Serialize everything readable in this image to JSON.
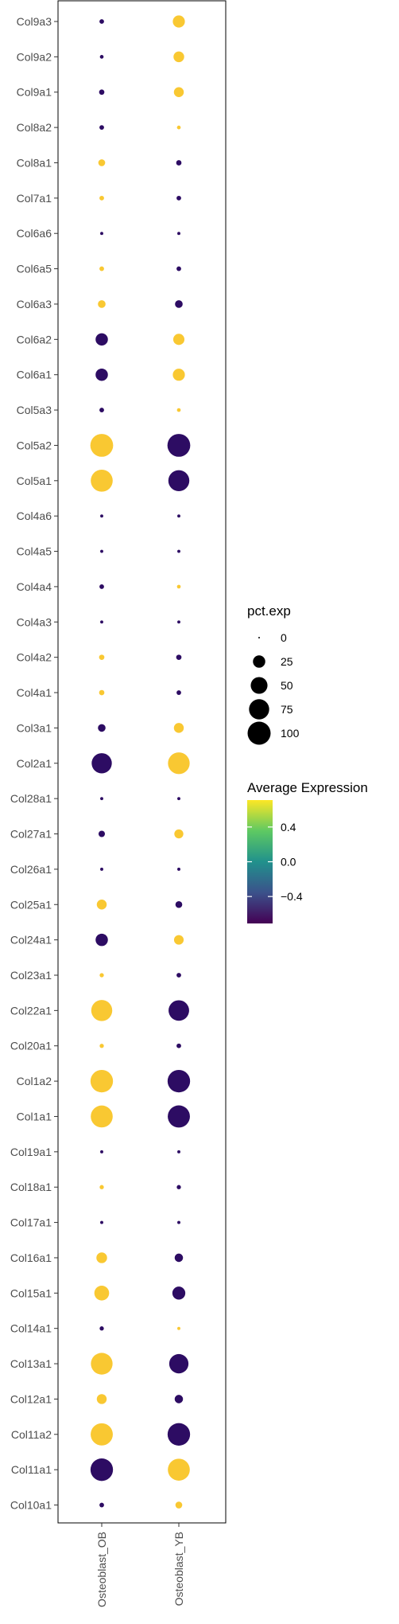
{
  "chart_data": {
    "type": "scatter",
    "subtype": "dotplot",
    "title": "",
    "xlabel": "",
    "ylabel": "",
    "x_categories": [
      "Osteoblast_OB",
      "Osteoblast_YB"
    ],
    "y_categories": [
      "Col9a3",
      "Col9a2",
      "Col9a1",
      "Col8a2",
      "Col8a1",
      "Col7a1",
      "Col6a6",
      "Col6a5",
      "Col6a3",
      "Col6a2",
      "Col6a1",
      "Col5a3",
      "Col5a2",
      "Col5a1",
      "Col4a6",
      "Col4a5",
      "Col4a4",
      "Col4a3",
      "Col4a2",
      "Col4a1",
      "Col3a1",
      "Col2a1",
      "Col28a1",
      "Col27a1",
      "Col26a1",
      "Col25a1",
      "Col24a1",
      "Col23a1",
      "Col22a1",
      "Col20a1",
      "Col1a2",
      "Col1a1",
      "Col19a1",
      "Col18a1",
      "Col17a1",
      "Col16a1",
      "Col15a1",
      "Col14a1",
      "Col13a1",
      "Col12a1",
      "Col11a2",
      "Col11a1",
      "Col10a1"
    ],
    "points": [
      {
        "gene": "Col9a3",
        "cluster": "Osteoblast_OB",
        "pct_exp": 2,
        "avg_exp": -0.71
      },
      {
        "gene": "Col9a3",
        "cluster": "Osteoblast_YB",
        "pct_exp": 24,
        "avg_exp": 0.71
      },
      {
        "gene": "Col9a2",
        "cluster": "Osteoblast_OB",
        "pct_exp": 1,
        "avg_exp": -0.71
      },
      {
        "gene": "Col9a2",
        "cluster": "Osteoblast_YB",
        "pct_exp": 18,
        "avg_exp": 0.71
      },
      {
        "gene": "Col9a1",
        "cluster": "Osteoblast_OB",
        "pct_exp": 3,
        "avg_exp": -0.71
      },
      {
        "gene": "Col9a1",
        "cluster": "Osteoblast_YB",
        "pct_exp": 15,
        "avg_exp": 0.71
      },
      {
        "gene": "Col8a2",
        "cluster": "Osteoblast_OB",
        "pct_exp": 2,
        "avg_exp": -0.71
      },
      {
        "gene": "Col8a2",
        "cluster": "Osteoblast_YB",
        "pct_exp": 1,
        "avg_exp": 0.71
      },
      {
        "gene": "Col8a1",
        "cluster": "Osteoblast_OB",
        "pct_exp": 6,
        "avg_exp": 0.71
      },
      {
        "gene": "Col8a1",
        "cluster": "Osteoblast_YB",
        "pct_exp": 3,
        "avg_exp": -0.71
      },
      {
        "gene": "Col7a1",
        "cluster": "Osteoblast_OB",
        "pct_exp": 2,
        "avg_exp": 0.71
      },
      {
        "gene": "Col7a1",
        "cluster": "Osteoblast_YB",
        "pct_exp": 2,
        "avg_exp": -0.71
      },
      {
        "gene": "Col6a6",
        "cluster": "Osteoblast_OB",
        "pct_exp": 0.5,
        "avg_exp": -0.71
      },
      {
        "gene": "Col6a6",
        "cluster": "Osteoblast_YB",
        "pct_exp": 0.5,
        "avg_exp": -0.71
      },
      {
        "gene": "Col6a5",
        "cluster": "Osteoblast_OB",
        "pct_exp": 2,
        "avg_exp": 0.71
      },
      {
        "gene": "Col6a5",
        "cluster": "Osteoblast_YB",
        "pct_exp": 2,
        "avg_exp": -0.71
      },
      {
        "gene": "Col6a3",
        "cluster": "Osteoblast_OB",
        "pct_exp": 8,
        "avg_exp": 0.71
      },
      {
        "gene": "Col6a3",
        "cluster": "Osteoblast_YB",
        "pct_exp": 8,
        "avg_exp": -0.71
      },
      {
        "gene": "Col6a2",
        "cluster": "Osteoblast_OB",
        "pct_exp": 25,
        "avg_exp": -0.71
      },
      {
        "gene": "Col6a2",
        "cluster": "Osteoblast_YB",
        "pct_exp": 20,
        "avg_exp": 0.71
      },
      {
        "gene": "Col6a1",
        "cluster": "Osteoblast_OB",
        "pct_exp": 25,
        "avg_exp": -0.71
      },
      {
        "gene": "Col6a1",
        "cluster": "Osteoblast_YB",
        "pct_exp": 24,
        "avg_exp": 0.71
      },
      {
        "gene": "Col5a3",
        "cluster": "Osteoblast_OB",
        "pct_exp": 2,
        "avg_exp": -0.71
      },
      {
        "gene": "Col5a3",
        "cluster": "Osteoblast_YB",
        "pct_exp": 1,
        "avg_exp": 0.71
      },
      {
        "gene": "Col5a2",
        "cluster": "Osteoblast_OB",
        "pct_exp": 98,
        "avg_exp": 0.71
      },
      {
        "gene": "Col5a2",
        "cluster": "Osteoblast_YB",
        "pct_exp": 98,
        "avg_exp": -0.71
      },
      {
        "gene": "Col5a1",
        "cluster": "Osteoblast_OB",
        "pct_exp": 90,
        "avg_exp": 0.71
      },
      {
        "gene": "Col5a1",
        "cluster": "Osteoblast_YB",
        "pct_exp": 82,
        "avg_exp": -0.71
      },
      {
        "gene": "Col4a6",
        "cluster": "Osteoblast_OB",
        "pct_exp": 0.5,
        "avg_exp": -0.71
      },
      {
        "gene": "Col4a6",
        "cluster": "Osteoblast_YB",
        "pct_exp": 0.5,
        "avg_exp": -0.71
      },
      {
        "gene": "Col4a5",
        "cluster": "Osteoblast_OB",
        "pct_exp": 0.5,
        "avg_exp": -0.71
      },
      {
        "gene": "Col4a5",
        "cluster": "Osteoblast_YB",
        "pct_exp": 0.5,
        "avg_exp": -0.71
      },
      {
        "gene": "Col4a4",
        "cluster": "Osteoblast_OB",
        "pct_exp": 2,
        "avg_exp": -0.71
      },
      {
        "gene": "Col4a4",
        "cluster": "Osteoblast_YB",
        "pct_exp": 1,
        "avg_exp": 0.71
      },
      {
        "gene": "Col4a3",
        "cluster": "Osteoblast_OB",
        "pct_exp": 0.5,
        "avg_exp": -0.71
      },
      {
        "gene": "Col4a3",
        "cluster": "Osteoblast_YB",
        "pct_exp": 0.5,
        "avg_exp": -0.71
      },
      {
        "gene": "Col4a2",
        "cluster": "Osteoblast_OB",
        "pct_exp": 3,
        "avg_exp": 0.71
      },
      {
        "gene": "Col4a2",
        "cluster": "Osteoblast_YB",
        "pct_exp": 3,
        "avg_exp": -0.71
      },
      {
        "gene": "Col4a1",
        "cluster": "Osteoblast_OB",
        "pct_exp": 3,
        "avg_exp": 0.71
      },
      {
        "gene": "Col4a1",
        "cluster": "Osteoblast_YB",
        "pct_exp": 2,
        "avg_exp": -0.71
      },
      {
        "gene": "Col3a1",
        "cluster": "Osteoblast_OB",
        "pct_exp": 8,
        "avg_exp": -0.71
      },
      {
        "gene": "Col3a1",
        "cluster": "Osteoblast_YB",
        "pct_exp": 15,
        "avg_exp": 0.71
      },
      {
        "gene": "Col2a1",
        "cluster": "Osteoblast_OB",
        "pct_exp": 75,
        "avg_exp": -0.71
      },
      {
        "gene": "Col2a1",
        "cluster": "Osteoblast_YB",
        "pct_exp": 88,
        "avg_exp": 0.71
      },
      {
        "gene": "Col28a1",
        "cluster": "Osteoblast_OB",
        "pct_exp": 0.5,
        "avg_exp": -0.71
      },
      {
        "gene": "Col28a1",
        "cluster": "Osteoblast_YB",
        "pct_exp": 0.5,
        "avg_exp": -0.71
      },
      {
        "gene": "Col27a1",
        "cluster": "Osteoblast_OB",
        "pct_exp": 5,
        "avg_exp": -0.71
      },
      {
        "gene": "Col27a1",
        "cluster": "Osteoblast_YB",
        "pct_exp": 12,
        "avg_exp": 0.71
      },
      {
        "gene": "Col26a1",
        "cluster": "Osteoblast_OB",
        "pct_exp": 0.5,
        "avg_exp": -0.71
      },
      {
        "gene": "Col26a1",
        "cluster": "Osteoblast_YB",
        "pct_exp": 0.5,
        "avg_exp": -0.71
      },
      {
        "gene": "Col25a1",
        "cluster": "Osteoblast_OB",
        "pct_exp": 15,
        "avg_exp": 0.71
      },
      {
        "gene": "Col25a1",
        "cluster": "Osteoblast_YB",
        "pct_exp": 6,
        "avg_exp": -0.71
      },
      {
        "gene": "Col24a1",
        "cluster": "Osteoblast_OB",
        "pct_exp": 25,
        "avg_exp": -0.71
      },
      {
        "gene": "Col24a1",
        "cluster": "Osteoblast_YB",
        "pct_exp": 14,
        "avg_exp": 0.71
      },
      {
        "gene": "Col23a1",
        "cluster": "Osteoblast_OB",
        "pct_exp": 1.5,
        "avg_exp": 0.71
      },
      {
        "gene": "Col23a1",
        "cluster": "Osteoblast_YB",
        "pct_exp": 2,
        "avg_exp": -0.71
      },
      {
        "gene": "Col22a1",
        "cluster": "Osteoblast_OB",
        "pct_exp": 82,
        "avg_exp": 0.71
      },
      {
        "gene": "Col22a1",
        "cluster": "Osteoblast_YB",
        "pct_exp": 78,
        "avg_exp": -0.71
      },
      {
        "gene": "Col20a1",
        "cluster": "Osteoblast_OB",
        "pct_exp": 1.5,
        "avg_exp": 0.71
      },
      {
        "gene": "Col20a1",
        "cluster": "Osteoblast_YB",
        "pct_exp": 2,
        "avg_exp": -0.71
      },
      {
        "gene": "Col1a2",
        "cluster": "Osteoblast_OB",
        "pct_exp": 95,
        "avg_exp": 0.71
      },
      {
        "gene": "Col1a2",
        "cluster": "Osteoblast_YB",
        "pct_exp": 95,
        "avg_exp": -0.71
      },
      {
        "gene": "Col1a1",
        "cluster": "Osteoblast_OB",
        "pct_exp": 90,
        "avg_exp": 0.71
      },
      {
        "gene": "Col1a1",
        "cluster": "Osteoblast_YB",
        "pct_exp": 92,
        "avg_exp": -0.71
      },
      {
        "gene": "Col19a1",
        "cluster": "Osteoblast_OB",
        "pct_exp": 0.5,
        "avg_exp": -0.71
      },
      {
        "gene": "Col19a1",
        "cluster": "Osteoblast_YB",
        "pct_exp": 0.5,
        "avg_exp": -0.71
      },
      {
        "gene": "Col18a1",
        "cluster": "Osteoblast_OB",
        "pct_exp": 1.5,
        "avg_exp": 0.71
      },
      {
        "gene": "Col18a1",
        "cluster": "Osteoblast_YB",
        "pct_exp": 1.5,
        "avg_exp": -0.71
      },
      {
        "gene": "Col17a1",
        "cluster": "Osteoblast_OB",
        "pct_exp": 0.5,
        "avg_exp": -0.71
      },
      {
        "gene": "Col17a1",
        "cluster": "Osteoblast_YB",
        "pct_exp": 0.5,
        "avg_exp": -0.71
      },
      {
        "gene": "Col16a1",
        "cluster": "Osteoblast_OB",
        "pct_exp": 18,
        "avg_exp": 0.71
      },
      {
        "gene": "Col16a1",
        "cluster": "Osteoblast_YB",
        "pct_exp": 10,
        "avg_exp": -0.71
      },
      {
        "gene": "Col15a1",
        "cluster": "Osteoblast_OB",
        "pct_exp": 38,
        "avg_exp": 0.71
      },
      {
        "gene": "Col15a1",
        "cluster": "Osteoblast_YB",
        "pct_exp": 28,
        "avg_exp": -0.71
      },
      {
        "gene": "Col14a1",
        "cluster": "Osteoblast_OB",
        "pct_exp": 1.5,
        "avg_exp": -0.71
      },
      {
        "gene": "Col14a1",
        "cluster": "Osteoblast_YB",
        "pct_exp": 0.5,
        "avg_exp": 0.71
      },
      {
        "gene": "Col13a1",
        "cluster": "Osteoblast_OB",
        "pct_exp": 88,
        "avg_exp": 0.71
      },
      {
        "gene": "Col13a1",
        "cluster": "Osteoblast_YB",
        "pct_exp": 68,
        "avg_exp": -0.71
      },
      {
        "gene": "Col12a1",
        "cluster": "Osteoblast_OB",
        "pct_exp": 15,
        "avg_exp": 0.71
      },
      {
        "gene": "Col12a1",
        "cluster": "Osteoblast_YB",
        "pct_exp": 10,
        "avg_exp": -0.71
      },
      {
        "gene": "Col11a2",
        "cluster": "Osteoblast_OB",
        "pct_exp": 92,
        "avg_exp": 0.71
      },
      {
        "gene": "Col11a2",
        "cluster": "Osteoblast_YB",
        "pct_exp": 95,
        "avg_exp": -0.71
      },
      {
        "gene": "Col11a1",
        "cluster": "Osteoblast_OB",
        "pct_exp": 95,
        "avg_exp": -0.71
      },
      {
        "gene": "Col11a1",
        "cluster": "Osteoblast_YB",
        "pct_exp": 90,
        "avg_exp": 0.71
      },
      {
        "gene": "Col10a1",
        "cluster": "Osteoblast_OB",
        "pct_exp": 2,
        "avg_exp": -0.71
      },
      {
        "gene": "Col10a1",
        "cluster": "Osteoblast_YB",
        "pct_exp": 6,
        "avg_exp": 0.71
      }
    ],
    "size_legend": {
      "title": "pct.exp",
      "entries": [
        {
          "label": "0",
          "value": 0
        },
        {
          "label": "25",
          "value": 25
        },
        {
          "label": "50",
          "value": 50
        },
        {
          "label": "75",
          "value": 75
        },
        {
          "label": "100",
          "value": 100
        }
      ]
    },
    "color_legend": {
      "title": "Average Expression",
      "range": [
        -0.71,
        0.71
      ],
      "ticks": [
        {
          "label": "0.4",
          "value": 0.4
        },
        {
          "label": "0.0",
          "value": 0.0
        },
        {
          "label": "−0.4",
          "value": -0.4
        }
      ],
      "colors": [
        "#440154",
        "#3b528b",
        "#21918c",
        "#5ec962",
        "#fde725"
      ],
      "point_low_color": "#2d0c63",
      "point_high_color": "#f9c832"
    },
    "legend_position": "right",
    "grid": false
  }
}
